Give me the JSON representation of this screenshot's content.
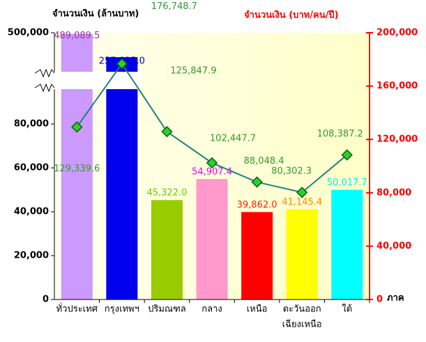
{
  "chart_data": {
    "type": "bar",
    "ylabel": "จำนวนเงิน (ล้านบาท)",
    "y2label": "จำนวนเงิน (บาท/คน/ปี)",
    "xlabel": "ภาค",
    "categories": [
      "ทั่วประเทศ",
      "กรุงเทพฯ",
      "ปริมณฑล",
      "กลาง",
      "เหนือ",
      [
        "ตะวันออก",
        "เฉียงเหนือ"
      ],
      "ใต้"
    ],
    "ylim": [
      0,
      500000
    ],
    "ybreak": 100000,
    "yticks": [
      0,
      {
        "value": 20000,
        "label": "20,000"
      },
      {
        "value": 40000,
        "label": "40,000"
      },
      {
        "value": 60000,
        "label": "60,000"
      },
      {
        "value": 80000,
        "label": "80,000"
      },
      {
        "value": 500000,
        "label": "500,000"
      }
    ],
    "y2lim": [
      0,
      200000
    ],
    "y2ticks": [
      0,
      {
        "value": 40000,
        "label": "40,000"
      },
      {
        "value": 80000,
        "label": "80,000"
      },
      {
        "value": 120000,
        "label": "120,000"
      },
      {
        "value": 160000,
        "label": "160,000"
      },
      {
        "value": 200000,
        "label": "200,000"
      }
    ],
    "series": [
      {
        "name": "จำนวนเงิน (ล้านบาท)",
        "type": "bar",
        "colors": [
          "#cc99ff",
          "#0000ee",
          "#99cc00",
          "#ff99cc",
          "#ff0000",
          "#ffff00",
          "#00ffff"
        ],
        "label_colors": [
          "#993399",
          "#0000cc",
          "#66cc00",
          "#ee00ee",
          "#ff2200",
          "#ff8800",
          "#00eeee"
        ],
        "values": [
          489089.5,
          257835.0,
          45322.0,
          54907.4,
          39862.0,
          41145.4,
          50017.7
        ],
        "value_labels": [
          "489,089.5",
          "257,835.0",
          "45,322.0",
          "54,907.4",
          "39,862.0",
          "41,145.4",
          "50,017.7"
        ]
      },
      {
        "name": "จำนวนเงิน (บาท/คน/ปี)",
        "type": "line",
        "axis": "y2",
        "color": "#1f8080",
        "marker_color": "#33cc33",
        "label_color": "#339933",
        "values": [
          129339.6,
          176748.7,
          125847.9,
          102447.7,
          88048.4,
          80302.3,
          108387.2
        ],
        "value_labels": [
          "129,339.6",
          "176,748.7",
          "125,847.9",
          "102,447.7",
          "88,048.4",
          "80,302.3",
          "108,387.2"
        ]
      }
    ]
  }
}
